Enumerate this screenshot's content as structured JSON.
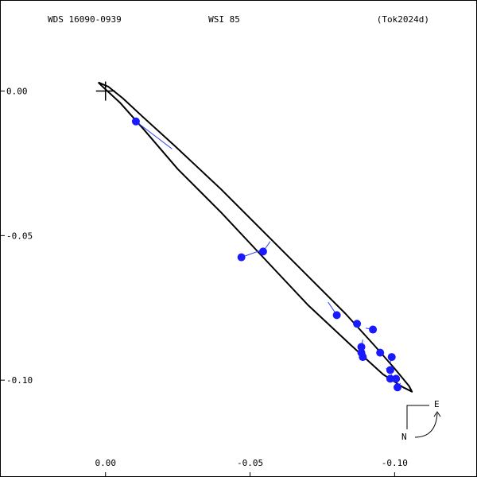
{
  "header": {
    "left": "WDS 16090-0939",
    "center": "WSI  85",
    "right": "(Tok2024d)"
  },
  "compass": {
    "east_label": "E",
    "north_label": "N"
  },
  "chart_data": {
    "type": "scatter",
    "title": "",
    "xlabel": "",
    "ylabel": "",
    "xlim": [
      0.0365,
      -0.1285
    ],
    "ylim": [
      -0.1335,
      0.0315
    ],
    "x_ticks": [
      {
        "value": -0.1,
        "label": "-0.10"
      },
      {
        "value": -0.05,
        "label": "-0.05"
      },
      {
        "value": 0.0,
        "label": "0.00"
      }
    ],
    "y_ticks": [
      {
        "value": 0.0,
        "label": "0.00"
      },
      {
        "value": -0.05,
        "label": "-0.05"
      },
      {
        "value": -0.1,
        "label": "-0.10"
      }
    ],
    "primary": {
      "x": 0.0,
      "y": 0.0
    },
    "orbit": [
      {
        "x": 0.0025,
        "y": 0.003
      },
      {
        "x": -0.001,
        "y": 0.0015
      },
      {
        "x": -0.006,
        "y": -0.0025
      },
      {
        "x": -0.013,
        "y": -0.009
      },
      {
        "x": -0.024,
        "y": -0.019
      },
      {
        "x": -0.04,
        "y": -0.034
      },
      {
        "x": -0.055,
        "y": -0.049
      },
      {
        "x": -0.07,
        "y": -0.064
      },
      {
        "x": -0.083,
        "y": -0.077
      },
      {
        "x": -0.093,
        "y": -0.088
      },
      {
        "x": -0.1,
        "y": -0.096
      },
      {
        "x": -0.105,
        "y": -0.102
      },
      {
        "x": -0.106,
        "y": -0.104
      },
      {
        "x": -0.103,
        "y": -0.1025
      },
      {
        "x": -0.096,
        "y": -0.098
      },
      {
        "x": -0.085,
        "y": -0.088
      },
      {
        "x": -0.07,
        "y": -0.074
      },
      {
        "x": -0.055,
        "y": -0.058
      },
      {
        "x": -0.04,
        "y": -0.042
      },
      {
        "x": -0.025,
        "y": -0.027
      },
      {
        "x": -0.013,
        "y": -0.013
      },
      {
        "x": -0.005,
        "y": -0.004
      },
      {
        "x": 0.0015,
        "y": 0.002
      },
      {
        "x": 0.0025,
        "y": 0.003
      }
    ],
    "observations": [
      {
        "x": -0.0105,
        "y": -0.0105,
        "ox": -0.023,
        "oy": -0.02
      },
      {
        "x": -0.0545,
        "y": -0.0555,
        "ox": -0.057,
        "oy": -0.052
      },
      {
        "x": -0.047,
        "y": -0.0575,
        "ox": -0.054,
        "oy": -0.055
      },
      {
        "x": -0.08,
        "y": -0.0775,
        "ox": -0.077,
        "oy": -0.073
      },
      {
        "x": -0.087,
        "y": -0.0805,
        "ox": -0.088,
        "oy": -0.081
      },
      {
        "x": -0.0925,
        "y": -0.0825,
        "ox": -0.09,
        "oy": -0.082
      },
      {
        "x": -0.0885,
        "y": -0.0885,
        "ox": -0.089,
        "oy": -0.086
      },
      {
        "x": -0.095,
        "y": -0.0905,
        "ox": -0.094,
        "oy": -0.09
      },
      {
        "x": -0.099,
        "y": -0.092,
        "ox": -0.0985,
        "oy": -0.094
      },
      {
        "x": -0.0885,
        "y": -0.0905,
        "ox": -0.09,
        "oy": -0.091
      },
      {
        "x": -0.089,
        "y": -0.092,
        "ox": -0.09,
        "oy": -0.093
      },
      {
        "x": -0.0985,
        "y": -0.0965,
        "ox": -0.097,
        "oy": -0.096
      },
      {
        "x": -0.1005,
        "y": -0.0995,
        "ox": -0.101,
        "oy": -0.099
      },
      {
        "x": -0.0985,
        "y": -0.0995,
        "ox": -0.099,
        "oy": -0.098
      },
      {
        "x": -0.101,
        "y": -0.1025,
        "ox": -0.102,
        "oy": -0.101
      }
    ]
  }
}
